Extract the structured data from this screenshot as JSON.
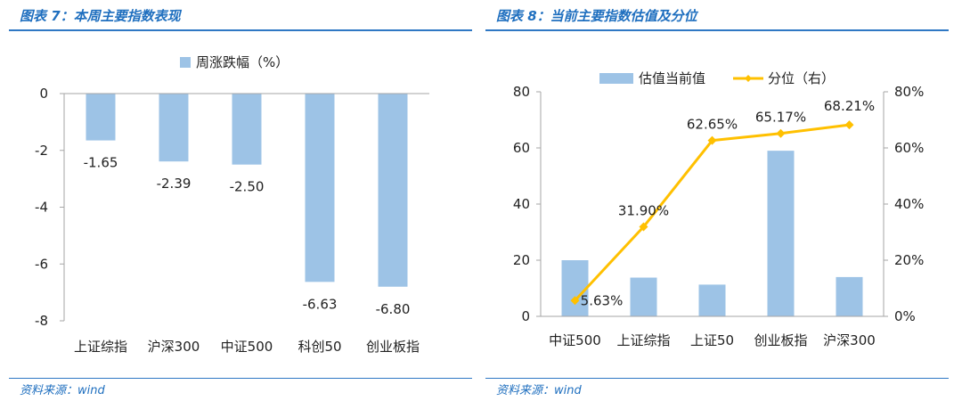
{
  "left_panel": {
    "figure_title": "图表 7：本周主要指数表现",
    "source": "资料来源：wind"
  },
  "right_panel": {
    "figure_title": "图表 8：当前主要指数估值及分位",
    "source": "资料来源：wind"
  },
  "colors": {
    "bar": "#9dc3e6",
    "line": "#ffc000",
    "title": "#1f6fbf",
    "rule": "#2f78c4",
    "axis": "#a6a6a6"
  },
  "chart_data": [
    {
      "type": "bar",
      "categories": [
        "上证综指",
        "沪深300",
        "中证500",
        "科创50",
        "创业板指"
      ],
      "series": [
        {
          "name": "周涨跌幅（%）",
          "values": [
            -1.65,
            -2.39,
            -2.5,
            -6.63,
            -6.8
          ]
        }
      ],
      "data_labels": [
        "-1.65",
        "-2.39",
        "-2.50",
        "-6.63",
        "-6.80"
      ],
      "ylim": [
        -8,
        0
      ],
      "yticks": [
        "0",
        "-2",
        "-4",
        "-6",
        "-8"
      ],
      "ytick_values": [
        0,
        -2,
        -4,
        -6,
        -8
      ],
      "grid": false,
      "legend_position": "top"
    },
    {
      "type": "bar",
      "categories": [
        "中证500",
        "上证综指",
        "上证50",
        "创业板指",
        "沪深300"
      ],
      "series": [
        {
          "name": "估值当前值",
          "type": "bar",
          "axis": "left",
          "values": [
            20,
            13.8,
            11.3,
            59,
            14
          ]
        },
        {
          "name": "分位（右）",
          "type": "line",
          "axis": "right",
          "values": [
            5.63,
            31.9,
            62.65,
            65.17,
            68.21
          ]
        }
      ],
      "line_labels": [
        "5.63%",
        "31.90%",
        "62.65%",
        "65.17%",
        "68.21%"
      ],
      "ylim": [
        0,
        80
      ],
      "yticks": [
        "0",
        "20",
        "40",
        "60",
        "80"
      ],
      "ytick_values": [
        0,
        20,
        40,
        60,
        80
      ],
      "y2lim": [
        0,
        80
      ],
      "y2ticks": [
        "0%",
        "20%",
        "40%",
        "60%",
        "80%"
      ],
      "y2tick_values": [
        0,
        20,
        40,
        60,
        80
      ],
      "grid": false,
      "legend_position": "top"
    }
  ]
}
